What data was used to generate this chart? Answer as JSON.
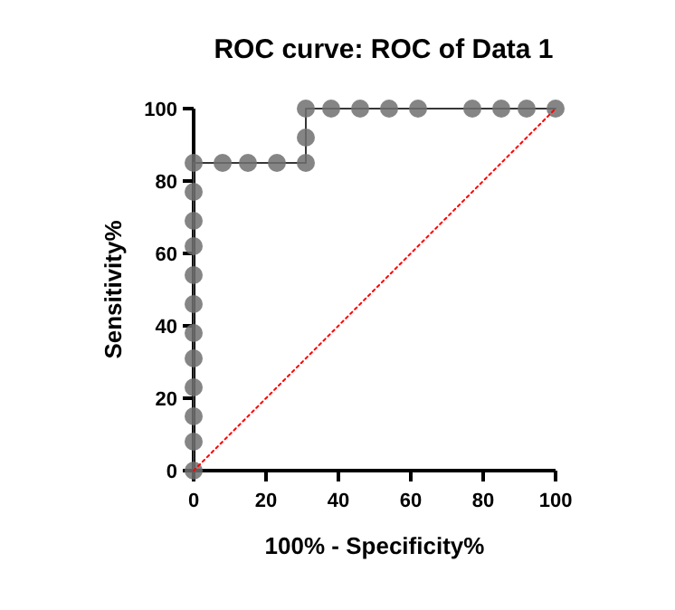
{
  "chart_data": {
    "type": "line",
    "title": "ROC curve: ROC of Data 1",
    "xlabel": "100% - Specificity%",
    "ylabel": "Sensitivity%",
    "xlim": [
      0,
      100
    ],
    "ylim": [
      0,
      100
    ],
    "xticks": [
      0,
      20,
      40,
      60,
      80,
      100
    ],
    "yticks": [
      0,
      20,
      40,
      60,
      80,
      100
    ],
    "grid": false,
    "series": [
      {
        "color": "#707070",
        "marker": "circle",
        "line_style": "solid",
        "x": [
          0,
          0,
          0,
          0,
          0,
          0,
          0,
          0,
          0,
          0,
          0,
          0,
          8,
          15,
          23,
          31,
          31,
          31,
          38,
          46,
          54,
          62,
          77,
          85,
          92,
          100
        ],
        "values": [
          0,
          8,
          15,
          23,
          31,
          38,
          46,
          54,
          62,
          69,
          77,
          85,
          85,
          85,
          85,
          85,
          92,
          100,
          100,
          100,
          100,
          100,
          100,
          100,
          100,
          100
        ]
      },
      {
        "color": "#ff0000",
        "marker": "none",
        "line_style": "dotted",
        "x": [
          0,
          100
        ],
        "values": [
          0,
          100
        ]
      }
    ]
  }
}
